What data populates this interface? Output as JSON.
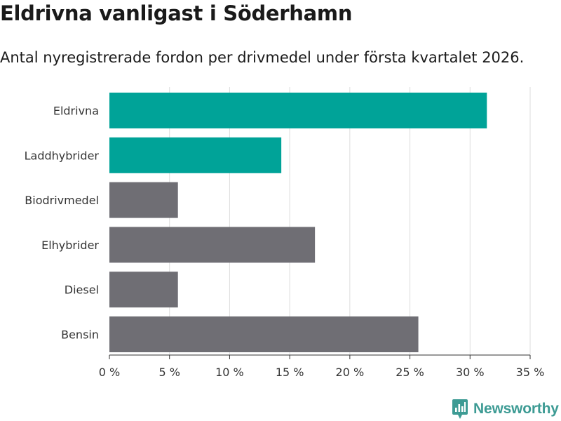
{
  "header": {
    "title": "Eldrivna vanligast i Söderhamn",
    "subtitle": "Antal nyregistrerade fordon per drivmedel under första kvartalet 2026."
  },
  "colors": {
    "highlight": "#00a398",
    "default": "#6f6e74",
    "brand": "#3d9b94"
  },
  "chart_data": {
    "type": "bar",
    "orientation": "horizontal",
    "title": "Eldrivna vanligast i Söderhamn",
    "subtitle": "Antal nyregistrerade fordon per drivmedel under första kvartalet 2026.",
    "xlabel": "",
    "ylabel": "",
    "xlim": [
      0,
      35
    ],
    "grid": true,
    "tick_values": [
      0,
      5,
      10,
      15,
      20,
      25,
      30,
      35
    ],
    "tick_suffix": " %",
    "categories": [
      "Eldrivna",
      "Laddhybrider",
      "Biodrivmedel",
      "Elhybrider",
      "Diesel",
      "Bensin"
    ],
    "values": [
      31.4,
      14.3,
      5.7,
      17.1,
      5.7,
      25.7
    ],
    "highlighted": [
      "Eldrivna",
      "Laddhybrider"
    ]
  },
  "logo": {
    "text": "Newsworthy",
    "icon": "newsworthy-logo-icon"
  }
}
